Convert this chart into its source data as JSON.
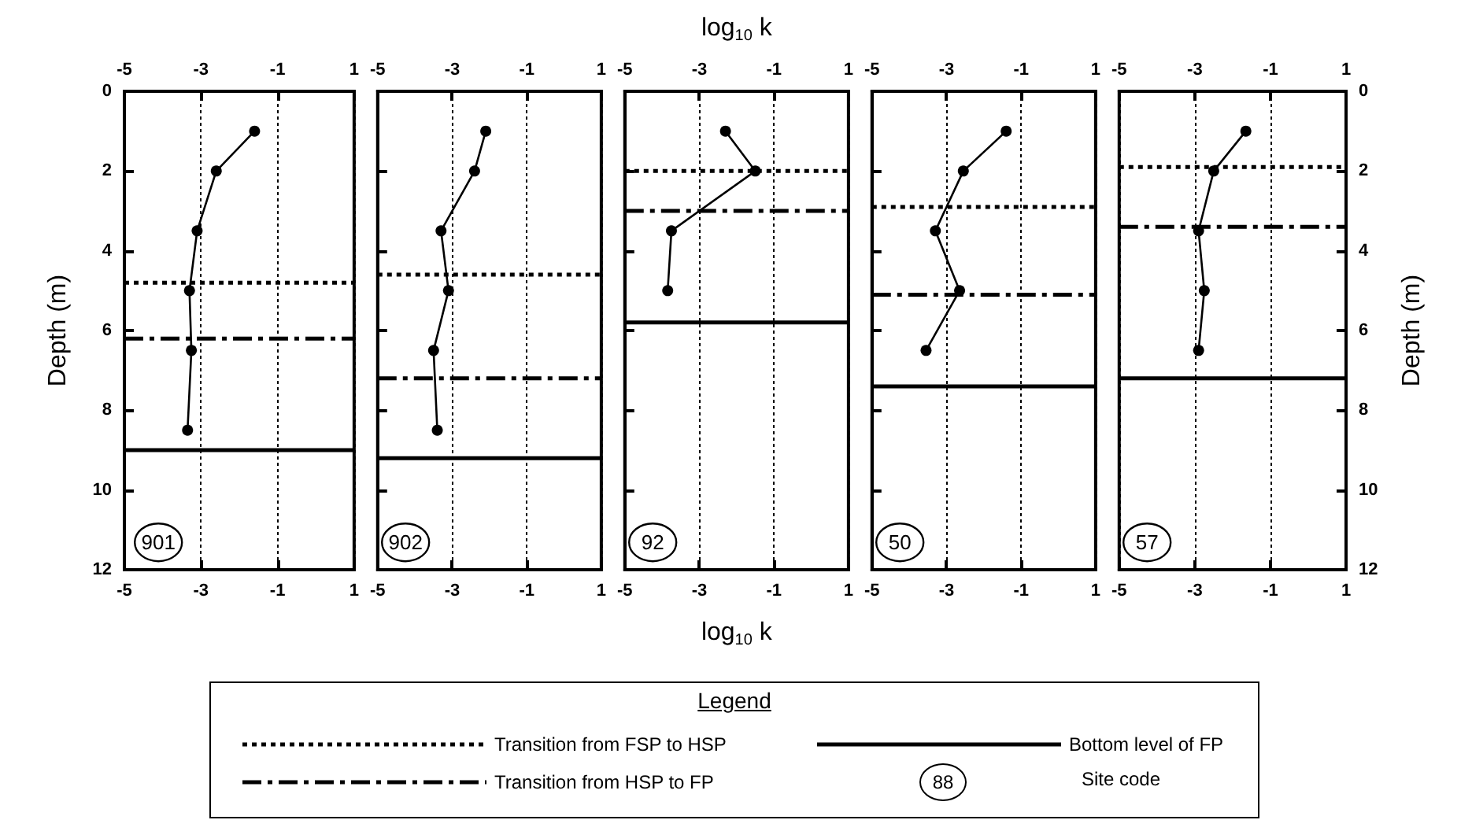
{
  "chart_data": [
    {
      "type": "line",
      "ylabel": "Depth (m)",
      "marker": "circle",
      "line_style": "solid",
      "grid": "x",
      "xlim": [
        -5,
        1
      ],
      "xticks": [
        -5,
        -3,
        -1,
        1
      ],
      "x2lim": [
        -5,
        1
      ],
      "x2ticks": [
        -5,
        -3,
        -1,
        1
      ],
      "ylim": [
        12,
        0
      ],
      "yticks": [
        0,
        2,
        4,
        6,
        8,
        10,
        12
      ],
      "series": [
        {
          "color": "#000000",
          "x": [
            -1.6,
            -2.6,
            -3.1,
            -3.3,
            -3.25,
            -3.35
          ],
          "values": [
            1,
            2,
            3.5,
            5,
            6.5,
            8.5
          ]
        }
      ],
      "ref_lines": [
        {
          "axis": "y",
          "value": 4.8,
          "line_style": "dotted"
        },
        {
          "axis": "y",
          "value": 6.2,
          "line_style": "dashdot"
        },
        {
          "axis": "y",
          "value": 9.0,
          "line_style": "solid"
        }
      ],
      "annotations": [
        "901"
      ]
    },
    {
      "type": "line",
      "marker": "circle",
      "line_style": "solid",
      "grid": "x",
      "tick_labels": "x",
      "xlim": [
        -5,
        1
      ],
      "xticks": [
        -5,
        -3,
        -1,
        1
      ],
      "x2lim": [
        -5,
        1
      ],
      "x2ticks": [
        -5,
        -3,
        -1,
        1
      ],
      "ylim": [
        12,
        0
      ],
      "yticks": [
        0,
        2,
        4,
        6,
        8,
        10,
        12
      ],
      "series": [
        {
          "color": "#000000",
          "x": [
            -2.1,
            -2.4,
            -3.3,
            -3.1,
            -3.5,
            -3.4
          ],
          "values": [
            1,
            2,
            3.5,
            5,
            6.5,
            8.5
          ]
        }
      ],
      "ref_lines": [
        {
          "axis": "y",
          "value": 4.6,
          "line_style": "dotted"
        },
        {
          "axis": "y",
          "value": 7.2,
          "line_style": "dashdot"
        },
        {
          "axis": "y",
          "value": 9.2,
          "line_style": "solid"
        }
      ],
      "annotations": [
        "902"
      ]
    },
    {
      "type": "line",
      "xlabel": "log$_{10}$ k",
      "x2label": "log$_{10}$ k",
      "marker": "circle",
      "line_style": "solid",
      "grid": "x",
      "tick_labels": "x",
      "xlim": [
        -5,
        1
      ],
      "xticks": [
        -5,
        -3,
        -1,
        1
      ],
      "x2lim": [
        -5,
        1
      ],
      "x2ticks": [
        -5,
        -3,
        -1,
        1
      ],
      "ylim": [
        12,
        0
      ],
      "yticks": [
        0,
        2,
        4,
        6,
        8,
        10,
        12
      ],
      "series": [
        {
          "color": "#000000",
          "x": [
            -2.3,
            -1.5,
            -3.75,
            -3.85
          ],
          "values": [
            1,
            2,
            3.5,
            5
          ]
        }
      ],
      "ref_lines": [
        {
          "axis": "y",
          "value": 2.0,
          "line_style": "dotted"
        },
        {
          "axis": "y",
          "value": 3.0,
          "line_style": "dashdot"
        },
        {
          "axis": "y",
          "value": 5.8,
          "line_style": "solid"
        }
      ],
      "annotations": [
        "92"
      ]
    },
    {
      "type": "line",
      "marker": "circle",
      "line_style": "solid",
      "grid": "x",
      "tick_labels": "x",
      "xlim": [
        -5,
        1
      ],
      "xticks": [
        -5,
        -3,
        -1,
        1
      ],
      "x2lim": [
        -5,
        1
      ],
      "x2ticks": [
        -5,
        -3,
        -1,
        1
      ],
      "ylim": [
        12,
        0
      ],
      "yticks": [
        0,
        2,
        4,
        6,
        8,
        10,
        12
      ],
      "series": [
        {
          "color": "#000000",
          "x": [
            -1.4,
            -2.55,
            -3.3,
            -2.65,
            -3.55
          ],
          "values": [
            1,
            2,
            3.5,
            5,
            6.5
          ]
        }
      ],
      "ref_lines": [
        {
          "axis": "y",
          "value": 2.9,
          "line_style": "dotted"
        },
        {
          "axis": "y",
          "value": 5.1,
          "line_style": "dashdot"
        },
        {
          "axis": "y",
          "value": 7.4,
          "line_style": "solid"
        }
      ],
      "annotations": [
        "50"
      ]
    },
    {
      "type": "line",
      "y2label": "Depth (m)",
      "marker": "circle",
      "line_style": "solid",
      "grid": "x",
      "xlim": [
        -5,
        1
      ],
      "xticks": [
        -5,
        -3,
        -1,
        1
      ],
      "x2lim": [
        -5,
        1
      ],
      "x2ticks": [
        -5,
        -3,
        -1,
        1
      ],
      "y2lim": [
        12,
        0
      ],
      "y2ticks": [
        0,
        2,
        4,
        6,
        8,
        10,
        12
      ],
      "series": [
        {
          "color": "#000000",
          "axis": "y2",
          "x": [
            -1.65,
            -2.5,
            -2.9,
            -2.75,
            -2.9
          ],
          "values": [
            1,
            2,
            3.5,
            5,
            6.5
          ]
        }
      ],
      "ref_lines": [
        {
          "axis": "y2",
          "value": 1.9,
          "line_style": "dotted"
        },
        {
          "axis": "y2",
          "value": 3.4,
          "line_style": "dashdot"
        },
        {
          "axis": "y2",
          "value": 7.2,
          "line_style": "solid"
        }
      ],
      "annotations": [
        "57"
      ]
    },
    {
      "type": "other",
      "title": "Legend",
      "series": [
        {
          "name": "Transition from FSP to HSP",
          "line_style": "dotted"
        },
        {
          "name": "Transition from HSP to FP",
          "line_style": "dashdot"
        },
        {
          "name": "Bottom level of FP",
          "line_style": "solid"
        }
      ],
      "annotations": [
        "88",
        "Site code"
      ]
    }
  ]
}
